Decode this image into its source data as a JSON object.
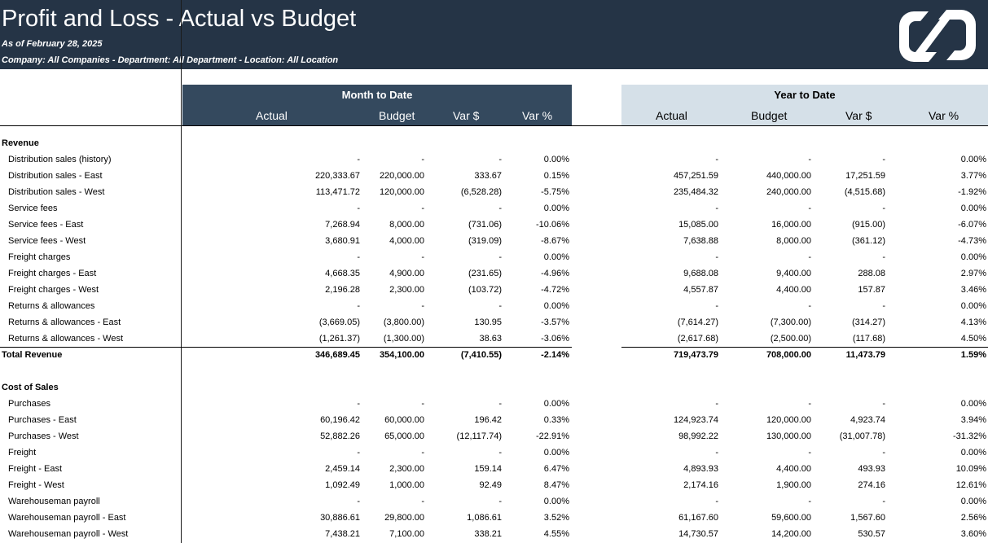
{
  "report": {
    "title": "Profit and Loss - Actual vs Budget",
    "as_of": "As of February 28, 2025",
    "filters": "Company: All Companies - Department: All Department - Location: All Location",
    "logo_icon": "company-logo-icon"
  },
  "headers": {
    "mtd_title": "Month to Date",
    "ytd_title": "Year to Date",
    "columns": [
      "Actual",
      "Budget",
      "Var $",
      "Var %"
    ]
  },
  "colors": {
    "banner": "#253446",
    "mtd_header": "#34495e",
    "ytd_header": "#d5e0e8"
  },
  "rows": [
    {
      "type": "section",
      "label": "Revenue"
    },
    {
      "type": "line",
      "label": "Distribution sales (history)",
      "mtd": [
        "-",
        "-",
        "-",
        "0.00%"
      ],
      "ytd": [
        "-",
        "-",
        "-",
        "0.00%"
      ]
    },
    {
      "type": "line",
      "label": "Distribution sales - East",
      "mtd": [
        "220,333.67",
        "220,000.00",
        "333.67",
        "0.15%"
      ],
      "ytd": [
        "457,251.59",
        "440,000.00",
        "17,251.59",
        "3.77%"
      ]
    },
    {
      "type": "line",
      "label": "Distribution sales - West",
      "mtd": [
        "113,471.72",
        "120,000.00",
        "(6,528.28)",
        "-5.75%"
      ],
      "ytd": [
        "235,484.32",
        "240,000.00",
        "(4,515.68)",
        "-1.92%"
      ]
    },
    {
      "type": "line",
      "label": "Service fees",
      "mtd": [
        "-",
        "-",
        "-",
        "0.00%"
      ],
      "ytd": [
        "-",
        "-",
        "-",
        "0.00%"
      ]
    },
    {
      "type": "line",
      "label": "Service fees - East",
      "mtd": [
        "7,268.94",
        "8,000.00",
        "(731.06)",
        "-10.06%"
      ],
      "ytd": [
        "15,085.00",
        "16,000.00",
        "(915.00)",
        "-6.07%"
      ]
    },
    {
      "type": "line",
      "label": "Service fees - West",
      "mtd": [
        "3,680.91",
        "4,000.00",
        "(319.09)",
        "-8.67%"
      ],
      "ytd": [
        "7,638.88",
        "8,000.00",
        "(361.12)",
        "-4.73%"
      ]
    },
    {
      "type": "line",
      "label": "Freight charges",
      "mtd": [
        "-",
        "-",
        "-",
        "0.00%"
      ],
      "ytd": [
        "-",
        "-",
        "-",
        "0.00%"
      ]
    },
    {
      "type": "line",
      "label": "Freight charges - East",
      "mtd": [
        "4,668.35",
        "4,900.00",
        "(231.65)",
        "-4.96%"
      ],
      "ytd": [
        "9,688.08",
        "9,400.00",
        "288.08",
        "2.97%"
      ]
    },
    {
      "type": "line",
      "label": "Freight charges - West",
      "mtd": [
        "2,196.28",
        "2,300.00",
        "(103.72)",
        "-4.72%"
      ],
      "ytd": [
        "4,557.87",
        "4,400.00",
        "157.87",
        "3.46%"
      ]
    },
    {
      "type": "line",
      "label": "Returns & allowances",
      "mtd": [
        "-",
        "-",
        "-",
        "0.00%"
      ],
      "ytd": [
        "-",
        "-",
        "-",
        "0.00%"
      ]
    },
    {
      "type": "line",
      "label": "Returns & allowances - East",
      "mtd": [
        "(3,669.05)",
        "(3,800.00)",
        "130.95",
        "-3.57%"
      ],
      "ytd": [
        "(7,614.27)",
        "(7,300.00)",
        "(314.27)",
        "4.13%"
      ]
    },
    {
      "type": "line",
      "label": "Returns & allowances - West",
      "mtd": [
        "(1,261.37)",
        "(1,300.00)",
        "38.63",
        "-3.06%"
      ],
      "ytd": [
        "(2,617.68)",
        "(2,500.00)",
        "(117.68)",
        "4.50%"
      ]
    },
    {
      "type": "total",
      "label": "Total Revenue",
      "mtd": [
        "346,689.45",
        "354,100.00",
        "(7,410.55)",
        "-2.14%"
      ],
      "ytd": [
        "719,473.79",
        "708,000.00",
        "11,473.79",
        "1.59%"
      ]
    },
    {
      "type": "blank"
    },
    {
      "type": "section",
      "label": "Cost of Sales"
    },
    {
      "type": "line",
      "label": "Purchases",
      "mtd": [
        "-",
        "-",
        "-",
        "0.00%"
      ],
      "ytd": [
        "-",
        "-",
        "-",
        "0.00%"
      ]
    },
    {
      "type": "line",
      "label": "Purchases - East",
      "mtd": [
        "60,196.42",
        "60,000.00",
        "196.42",
        "0.33%"
      ],
      "ytd": [
        "124,923.74",
        "120,000.00",
        "4,923.74",
        "3.94%"
      ]
    },
    {
      "type": "line",
      "label": "Purchases - West",
      "mtd": [
        "52,882.26",
        "65,000.00",
        "(12,117.74)",
        "-22.91%"
      ],
      "ytd": [
        "98,992.22",
        "130,000.00",
        "(31,007.78)",
        "-31.32%"
      ]
    },
    {
      "type": "line",
      "label": "Freight",
      "mtd": [
        "-",
        "-",
        "-",
        "0.00%"
      ],
      "ytd": [
        "-",
        "-",
        "-",
        "0.00%"
      ]
    },
    {
      "type": "line",
      "label": "Freight - East",
      "mtd": [
        "2,459.14",
        "2,300.00",
        "159.14",
        "6.47%"
      ],
      "ytd": [
        "4,893.93",
        "4,400.00",
        "493.93",
        "10.09%"
      ]
    },
    {
      "type": "line",
      "label": "Freight - West",
      "mtd": [
        "1,092.49",
        "1,000.00",
        "92.49",
        "8.47%"
      ],
      "ytd": [
        "2,174.16",
        "1,900.00",
        "274.16",
        "12.61%"
      ]
    },
    {
      "type": "line",
      "label": "Warehouseman payroll",
      "mtd": [
        "-",
        "-",
        "-",
        "0.00%"
      ],
      "ytd": [
        "-",
        "-",
        "-",
        "0.00%"
      ]
    },
    {
      "type": "line",
      "label": "Warehouseman payroll - East",
      "mtd": [
        "30,886.61",
        "29,800.00",
        "1,086.61",
        "3.52%"
      ],
      "ytd": [
        "61,167.60",
        "59,600.00",
        "1,567.60",
        "2.56%"
      ]
    },
    {
      "type": "line",
      "label": "Warehouseman payroll - West",
      "mtd": [
        "7,438.21",
        "7,100.00",
        "338.21",
        "4.55%"
      ],
      "ytd": [
        "14,730.57",
        "14,200.00",
        "530.57",
        "3.60%"
      ]
    }
  ]
}
